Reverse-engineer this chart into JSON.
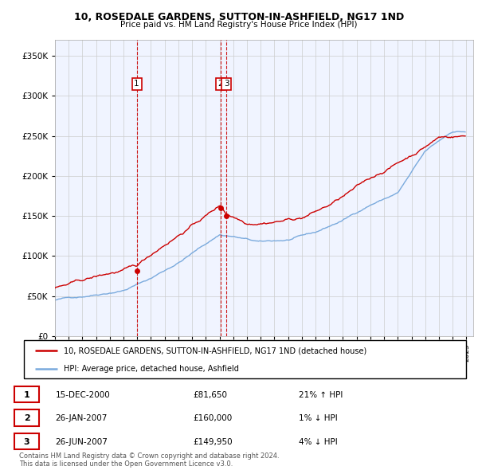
{
  "title": "10, ROSEDALE GARDENS, SUTTON-IN-ASHFIELD, NG17 1ND",
  "subtitle": "Price paid vs. HM Land Registry's House Price Index (HPI)",
  "red_label": "10, ROSEDALE GARDENS, SUTTON-IN-ASHFIELD, NG17 1ND (detached house)",
  "blue_label": "HPI: Average price, detached house, Ashfield",
  "footer": "Contains HM Land Registry data © Crown copyright and database right 2024.\nThis data is licensed under the Open Government Licence v3.0.",
  "transactions": [
    {
      "num": 1,
      "date": "15-DEC-2000",
      "price": 81650,
      "pct": "21%",
      "dir": "↑"
    },
    {
      "num": 2,
      "date": "26-JAN-2007",
      "price": 160000,
      "pct": "1%",
      "dir": "↓"
    },
    {
      "num": 3,
      "date": "26-JUN-2007",
      "price": 149950,
      "pct": "4%",
      "dir": "↓"
    }
  ],
  "transaction_prices": [
    81650,
    160000,
    149950
  ],
  "transaction_years": [
    2000.96,
    2007.07,
    2007.49
  ],
  "ylim": [
    0,
    370000
  ],
  "yticks": [
    0,
    50000,
    100000,
    150000,
    200000,
    250000,
    300000,
    350000
  ],
  "red_color": "#cc0000",
  "blue_color": "#7aaadd",
  "grid_color": "#cccccc",
  "bg_color": "#f0f4ff"
}
